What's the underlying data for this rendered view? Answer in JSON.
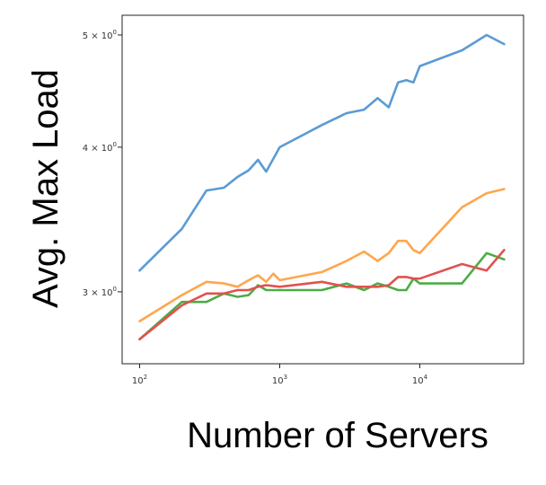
{
  "chart_data": {
    "type": "line",
    "title": "",
    "xlabel": "Number of Servers",
    "ylabel": "Avg. Max Load",
    "xscale": "log",
    "yscale": "log",
    "xlim": [
      75,
      55000
    ],
    "ylim": [
      2.6,
      5.2
    ],
    "grid": false,
    "legend": "none",
    "x_ticks": [
      {
        "value": 100,
        "base": "10",
        "exp": "2"
      },
      {
        "value": 1000,
        "base": "10",
        "exp": "3"
      },
      {
        "value": 10000,
        "base": "10",
        "exp": "4"
      }
    ],
    "y_ticks": [
      {
        "value": 3,
        "label": "3 × 10",
        "exp": "0"
      },
      {
        "value": 4,
        "label": "4 × 10",
        "exp": "0"
      },
      {
        "value": 5,
        "label": "5 × 10",
        "exp": "0"
      }
    ],
    "series": [
      {
        "color": "#5b9bd5",
        "x": [
          100,
          200,
          300,
          400,
          500,
          600,
          700,
          800,
          1000,
          2000,
          3000,
          4000,
          5000,
          6000,
          7000,
          8000,
          9000,
          10000,
          20000,
          30000,
          40000
        ],
        "y": [
          3.13,
          3.4,
          3.67,
          3.69,
          3.77,
          3.82,
          3.9,
          3.81,
          4.0,
          4.18,
          4.28,
          4.31,
          4.41,
          4.33,
          4.55,
          4.57,
          4.55,
          4.7,
          4.85,
          5.0,
          4.91
        ]
      },
      {
        "color": "#ffa64d",
        "x": [
          100,
          200,
          300,
          400,
          500,
          600,
          700,
          800,
          900,
          1000,
          2000,
          3000,
          4000,
          5000,
          6000,
          7000,
          8000,
          9000,
          10000,
          20000,
          30000,
          40000
        ],
        "y": [
          2.83,
          2.98,
          3.06,
          3.05,
          3.03,
          3.07,
          3.1,
          3.06,
          3.11,
          3.07,
          3.12,
          3.19,
          3.25,
          3.19,
          3.24,
          3.32,
          3.32,
          3.26,
          3.24,
          3.55,
          3.65,
          3.68
        ]
      },
      {
        "color": "#4dac45",
        "x": [
          100,
          200,
          300,
          400,
          500,
          600,
          700,
          800,
          1000,
          2000,
          3000,
          4000,
          5000,
          6000,
          7000,
          8000,
          9000,
          10000,
          20000,
          30000,
          40000
        ],
        "y": [
          2.73,
          2.94,
          2.94,
          2.99,
          2.97,
          2.98,
          3.04,
          3.01,
          3.01,
          3.01,
          3.05,
          3.01,
          3.05,
          3.03,
          3.01,
          3.01,
          3.08,
          3.05,
          3.05,
          3.24,
          3.2
        ]
      },
      {
        "color": "#e0524f",
        "x": [
          100,
          200,
          300,
          400,
          500,
          600,
          700,
          800,
          1000,
          2000,
          3000,
          4000,
          5000,
          6000,
          7000,
          8000,
          9000,
          10000,
          20000,
          30000,
          40000
        ],
        "y": [
          2.73,
          2.92,
          2.99,
          2.99,
          3.01,
          3.01,
          3.03,
          3.04,
          3.03,
          3.06,
          3.03,
          3.03,
          3.03,
          3.04,
          3.09,
          3.09,
          3.08,
          3.08,
          3.17,
          3.13,
          3.26
        ]
      }
    ]
  }
}
